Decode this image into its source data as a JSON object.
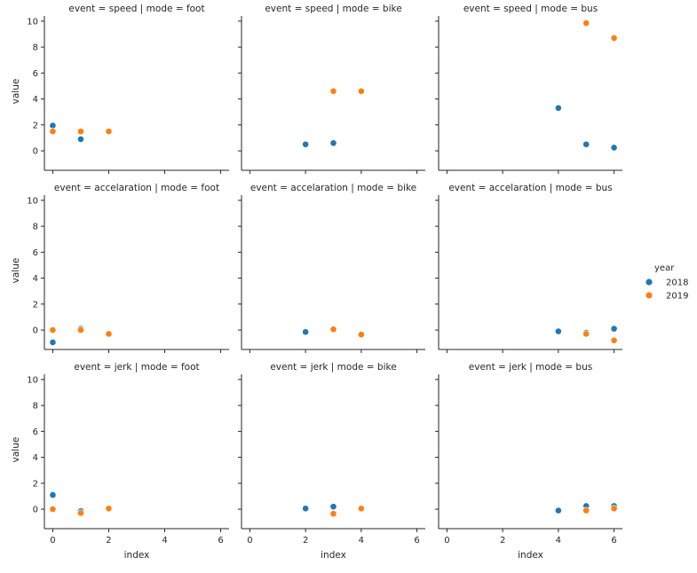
{
  "chart_data": {
    "type": "scatter",
    "facet_rows": [
      "speed",
      "accelaration",
      "jerk"
    ],
    "facet_cols": [
      "foot",
      "bike",
      "bus"
    ],
    "xlabel": "index",
    "ylabel": "value",
    "xlim": [
      -0.3,
      6.3
    ],
    "ylim": [
      -1.5,
      10.4
    ],
    "xticks": [
      0,
      2,
      4,
      6
    ],
    "yticks": [
      0,
      2,
      4,
      6,
      8,
      10
    ],
    "grid": false,
    "sharex": true,
    "sharey": true,
    "legend": {
      "title": "year",
      "placement": "right",
      "entries": [
        {
          "label": "2018",
          "color": "#1f77b4"
        },
        {
          "label": "2019",
          "color": "#ff7f0e"
        }
      ]
    },
    "panels": [
      {
        "title": "event = speed | mode = foot",
        "event": "speed",
        "mode": "foot",
        "series": [
          {
            "name": "2018",
            "x": [
              0,
              1
            ],
            "y": [
              1.95,
              0.9
            ]
          },
          {
            "name": "2019",
            "x": [
              0,
              1,
              2
            ],
            "y": [
              1.5,
              1.5,
              1.5
            ]
          }
        ]
      },
      {
        "title": "event = speed | mode = bike",
        "event": "speed",
        "mode": "bike",
        "series": [
          {
            "name": "2018",
            "x": [
              2,
              3
            ],
            "y": [
              0.5,
              0.6
            ]
          },
          {
            "name": "2019",
            "x": [
              3,
              4
            ],
            "y": [
              4.6,
              4.6
            ]
          }
        ]
      },
      {
        "title": "event = speed | mode = bus",
        "event": "speed",
        "mode": "bus",
        "series": [
          {
            "name": "2018",
            "x": [
              4,
              5,
              6
            ],
            "y": [
              3.3,
              0.5,
              0.25
            ]
          },
          {
            "name": "2019",
            "x": [
              5,
              6
            ],
            "y": [
              9.85,
              8.7
            ]
          }
        ]
      },
      {
        "title": "event = accelaration | mode = foot",
        "event": "accelaration",
        "mode": "foot",
        "series": [
          {
            "name": "2018",
            "x": [
              0,
              1
            ],
            "y": [
              -0.95,
              0.1
            ]
          },
          {
            "name": "2019",
            "x": [
              0,
              1,
              2
            ],
            "y": [
              0.0,
              0.0,
              -0.3
            ]
          }
        ]
      },
      {
        "title": "event = accelaration | mode = bike",
        "event": "accelaration",
        "mode": "bike",
        "series": [
          {
            "name": "2018",
            "x": [
              2
            ],
            "y": [
              -0.15
            ]
          },
          {
            "name": "2019",
            "x": [
              3,
              4
            ],
            "y": [
              0.05,
              -0.35
            ]
          }
        ]
      },
      {
        "title": "event = accelaration | mode = bus",
        "event": "accelaration",
        "mode": "bus",
        "series": [
          {
            "name": "2018",
            "x": [
              4,
              5,
              6
            ],
            "y": [
              -0.1,
              -0.2,
              0.1
            ]
          },
          {
            "name": "2019",
            "x": [
              5,
              6
            ],
            "y": [
              -0.3,
              -0.8
            ]
          }
        ]
      },
      {
        "title": "event = jerk | mode = foot",
        "event": "jerk",
        "mode": "foot",
        "series": [
          {
            "name": "2018",
            "x": [
              0,
              1
            ],
            "y": [
              1.1,
              -0.15
            ]
          },
          {
            "name": "2019",
            "x": [
              0,
              1,
              2
            ],
            "y": [
              0.0,
              -0.3,
              0.05
            ]
          }
        ]
      },
      {
        "title": "event = jerk | mode = bike",
        "event": "jerk",
        "mode": "bike",
        "series": [
          {
            "name": "2018",
            "x": [
              2,
              3
            ],
            "y": [
              0.05,
              0.2
            ]
          },
          {
            "name": "2019",
            "x": [
              3,
              4
            ],
            "y": [
              -0.35,
              0.05
            ]
          }
        ]
      },
      {
        "title": "event = jerk | mode = bus",
        "event": "jerk",
        "mode": "bus",
        "series": [
          {
            "name": "2018",
            "x": [
              4,
              5,
              6
            ],
            "y": [
              -0.1,
              0.25,
              0.25
            ]
          },
          {
            "name": "2019",
            "x": [
              5,
              6
            ],
            "y": [
              -0.1,
              0.05
            ]
          }
        ]
      }
    ]
  }
}
